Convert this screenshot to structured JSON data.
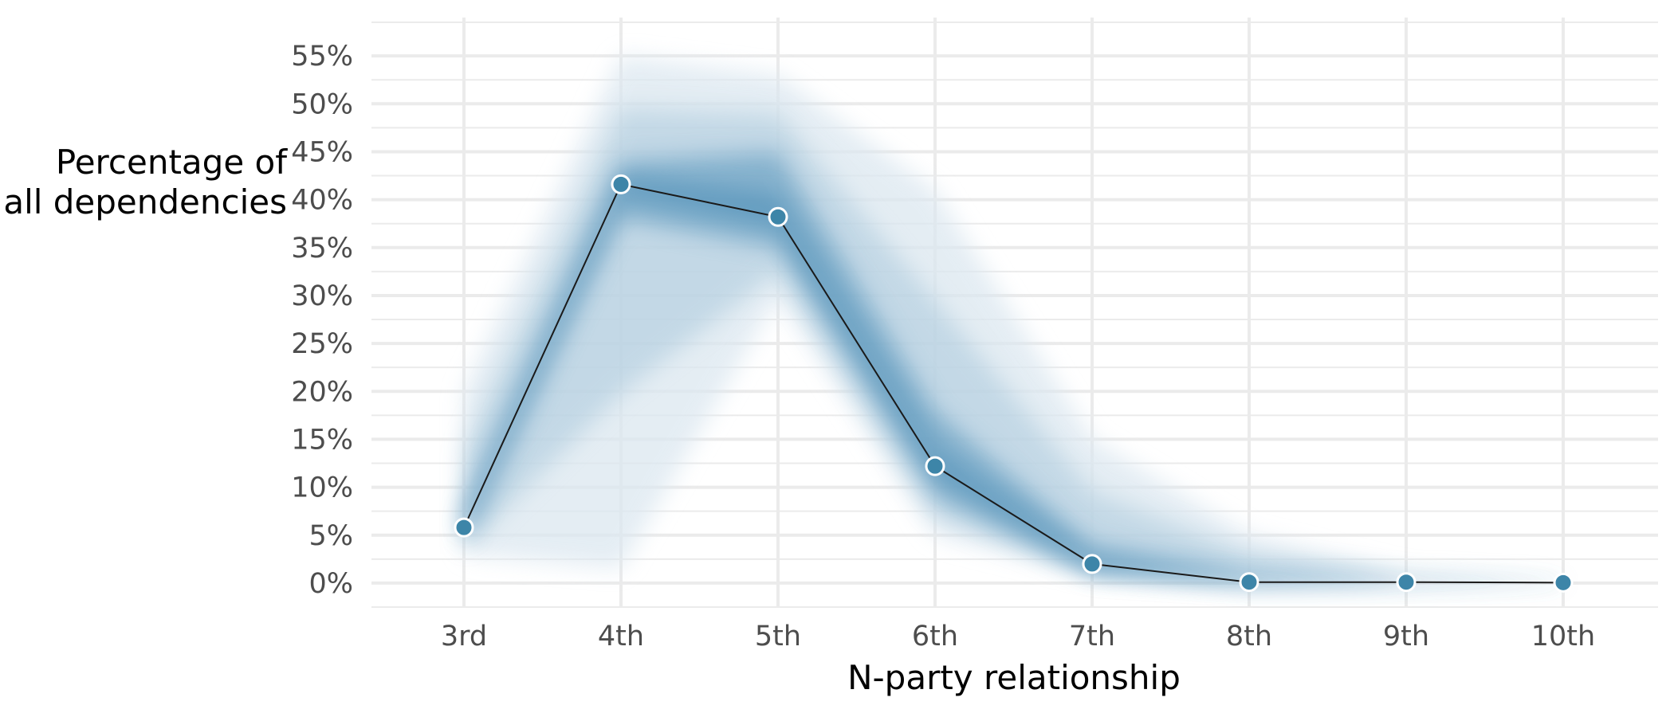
{
  "chart_data": {
    "type": "line",
    "xlabel": "N-party relationship",
    "ylabel_lines": [
      "Percentage of",
      "all dependencies"
    ],
    "categories": [
      "3rd",
      "4th",
      "5th",
      "6th",
      "7th",
      "8th",
      "9th",
      "10th"
    ],
    "series": [
      {
        "values": [
          5.8,
          41.6,
          38.2,
          12.2,
          2.0,
          0.1,
          0.1,
          0.05
        ]
      }
    ],
    "uncertainty_bands": {
      "outer_upper": [
        20,
        55,
        53,
        41,
        15,
        5,
        1,
        0.2
      ],
      "outer_lower": [
        3,
        1.5,
        30,
        5,
        1,
        0,
        0,
        0
      ],
      "inner_upper": [
        8,
        44,
        45,
        18,
        4,
        1,
        0.3,
        0.1
      ],
      "inner_lower": [
        4,
        38,
        35,
        9,
        1,
        0,
        0,
        0
      ]
    },
    "yticks": [
      0,
      5,
      10,
      15,
      20,
      25,
      30,
      35,
      40,
      45,
      50,
      55
    ],
    "ytick_labels": [
      "0%",
      "5%",
      "10%",
      "15%",
      "20%",
      "25%",
      "30%",
      "35%",
      "40%",
      "45%",
      "50%",
      "55%"
    ],
    "ylim": [
      -2.5,
      59
    ],
    "grid": true,
    "colors": {
      "line": "#1a1a1a",
      "point": "#3d85a8",
      "point_edge": "#ffffff",
      "band_outer": "#dbe7f0",
      "band_mid": "#a9c8dc",
      "band_inner": "#4a8cb5",
      "grid": "#ebebeb",
      "tick_text": "#4d4d4d"
    }
  }
}
